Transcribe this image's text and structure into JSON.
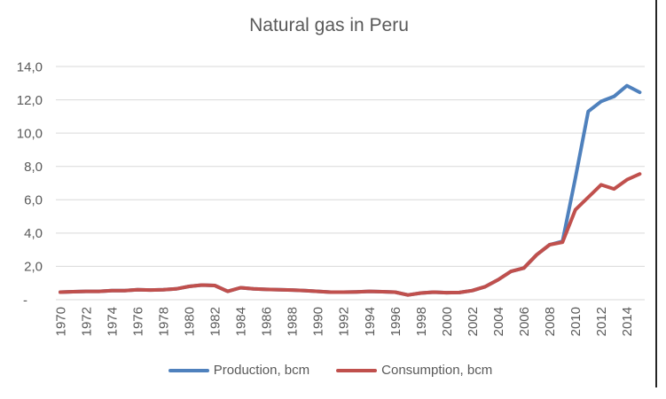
{
  "chart_data": {
    "type": "line",
    "title": "Natural gas in Peru",
    "xlabel": "",
    "ylabel": "",
    "grid": true,
    "legend_position": "bottom",
    "ylim": [
      0,
      14
    ],
    "ytick_step": 2,
    "ytick_labels": [
      "-",
      "2,0",
      "4,0",
      "6,0",
      "8,0",
      "10,0",
      "12,0",
      "14,0"
    ],
    "xtick_labels": [
      "1970",
      "1972",
      "1974",
      "1976",
      "1978",
      "1980",
      "1982",
      "1984",
      "1986",
      "1988",
      "1990",
      "1992",
      "1994",
      "1996",
      "1998",
      "2000",
      "2002",
      "2004",
      "2006",
      "2008",
      "2010",
      "2012",
      "2014"
    ],
    "x": [
      1970,
      1971,
      1972,
      1973,
      1974,
      1975,
      1976,
      1977,
      1978,
      1979,
      1980,
      1981,
      1982,
      1983,
      1984,
      1985,
      1986,
      1987,
      1988,
      1989,
      1990,
      1991,
      1992,
      1993,
      1994,
      1995,
      1996,
      1997,
      1998,
      1999,
      2000,
      2001,
      2002,
      2003,
      2004,
      2005,
      2006,
      2007,
      2008,
      2009,
      2010,
      2011,
      2012,
      2013,
      2014,
      2015
    ],
    "series": [
      {
        "name": "Production, bcm",
        "color": "#4F81BD",
        "values": [
          0.45,
          0.48,
          0.5,
          0.5,
          0.55,
          0.55,
          0.6,
          0.58,
          0.6,
          0.65,
          0.8,
          0.88,
          0.85,
          0.5,
          0.72,
          0.65,
          0.62,
          0.6,
          0.58,
          0.55,
          0.5,
          0.45,
          0.45,
          0.47,
          0.5,
          0.48,
          0.45,
          0.28,
          0.4,
          0.45,
          0.42,
          0.43,
          0.55,
          0.78,
          1.2,
          1.7,
          1.9,
          2.7,
          3.3,
          3.5,
          7.3,
          11.3,
          11.9,
          12.2,
          12.85,
          12.45
        ]
      },
      {
        "name": "Consumption, bcm",
        "color": "#C0504D",
        "values": [
          0.45,
          0.48,
          0.5,
          0.5,
          0.55,
          0.55,
          0.6,
          0.58,
          0.6,
          0.65,
          0.8,
          0.88,
          0.85,
          0.5,
          0.72,
          0.65,
          0.62,
          0.6,
          0.58,
          0.55,
          0.5,
          0.45,
          0.45,
          0.47,
          0.5,
          0.48,
          0.45,
          0.28,
          0.4,
          0.45,
          0.42,
          0.43,
          0.55,
          0.78,
          1.2,
          1.7,
          1.9,
          2.7,
          3.3,
          3.45,
          5.4,
          6.15,
          6.9,
          6.65,
          7.2,
          7.55
        ]
      }
    ],
    "text_color": "#595959",
    "gridline_color": "#D9D9D9"
  }
}
